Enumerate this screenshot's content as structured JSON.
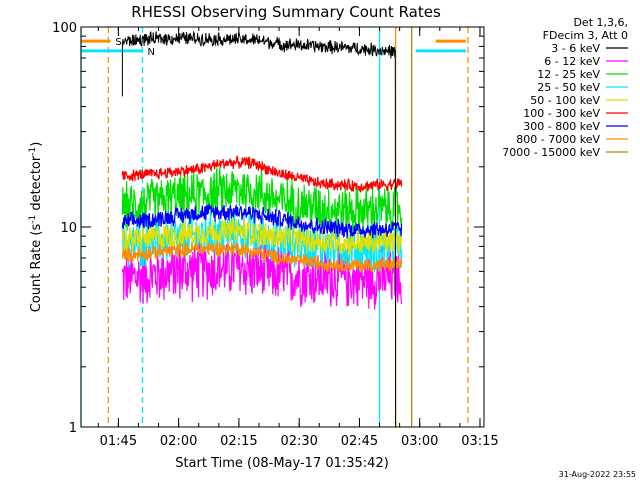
{
  "chart_data": {
    "type": "line",
    "title": "RHESSI Observing Summary Count Rates",
    "xlabel": "Start Time (08-May-17 01:35:42)",
    "ylabel": "Count Rate (s",
    "ylabel_sup": "-1",
    "ylabel_rest": " detector",
    "ylabel_sup2": "-1",
    "ylabel_end": ")",
    "y_scale": "log",
    "ylim": [
      1,
      100
    ],
    "xlim": [
      "01:35:42",
      "03:16:00"
    ],
    "x_ticks": [
      "01:45",
      "02:00",
      "02:15",
      "02:30",
      "02:45",
      "03:00",
      "03:15"
    ],
    "y_ticks": [
      "1",
      "10",
      "100"
    ],
    "legend_header": [
      "Det 1,3,6,",
      "FDecim 3, Att 0"
    ],
    "legend_placement": "right",
    "series": [
      {
        "name": "3 - 6 keV",
        "color": "#000000",
        "base": 85,
        "noise": 0.045,
        "points": [
          [
            "01:47",
            85
          ],
          [
            "01:53",
            87
          ],
          [
            "02:00",
            88
          ],
          [
            "02:10",
            87
          ],
          [
            "02:20",
            86
          ],
          [
            "02:25",
            82
          ],
          [
            "02:35",
            80
          ],
          [
            "02:45",
            78
          ],
          [
            "02:52",
            76
          ],
          [
            "02:54",
            75
          ]
        ]
      },
      {
        "name": "6 - 12 keV",
        "color": "#ff00ff",
        "base": 5.6,
        "noise": 0.2,
        "points": [
          [
            "01:46",
            5.5
          ],
          [
            "02:00",
            6.0
          ],
          [
            "02:10",
            6.2
          ],
          [
            "02:15",
            6.3
          ],
          [
            "02:25",
            5.8
          ],
          [
            "02:35",
            5.6
          ],
          [
            "02:45",
            5.5
          ],
          [
            "02:55",
            5.6
          ]
        ]
      },
      {
        "name": "12 - 25 keV",
        "color": "#00e000",
        "base": 13,
        "noise": 0.16,
        "points": [
          [
            "01:46",
            12.5
          ],
          [
            "01:55",
            13.5
          ],
          [
            "02:05",
            14.5
          ],
          [
            "02:15",
            15.5
          ],
          [
            "02:20",
            15.0
          ],
          [
            "02:25",
            13.5
          ],
          [
            "02:35",
            12.5
          ],
          [
            "02:45",
            12.0
          ],
          [
            "02:55",
            12.5
          ]
        ]
      },
      {
        "name": "25 - 50 keV",
        "color": "#00e6ff",
        "base": 8.2,
        "noise": 0.16,
        "points": [
          [
            "01:46",
            8.0
          ],
          [
            "01:55",
            8.5
          ],
          [
            "02:05",
            9.0
          ],
          [
            "02:15",
            9.3
          ],
          [
            "02:25",
            8.5
          ],
          [
            "02:35",
            8.0
          ],
          [
            "02:45",
            7.8
          ],
          [
            "02:55",
            8.0
          ]
        ]
      },
      {
        "name": "50 - 100 keV",
        "color": "#e0e000",
        "base": 8.8,
        "noise": 0.09,
        "points": [
          [
            "01:46",
            8.6
          ],
          [
            "01:55",
            8.9
          ],
          [
            "02:05",
            9.3
          ],
          [
            "02:15",
            9.6
          ],
          [
            "02:25",
            8.8
          ],
          [
            "02:35",
            8.5
          ],
          [
            "02:45",
            8.3
          ],
          [
            "02:55",
            8.5
          ]
        ]
      },
      {
        "name": "100 - 300 keV",
        "color": "#ff0000",
        "base": 18,
        "noise": 0.04,
        "points": [
          [
            "01:46",
            18
          ],
          [
            "01:55",
            18.5
          ],
          [
            "02:05",
            19.5
          ],
          [
            "02:12",
            21
          ],
          [
            "02:18",
            21
          ],
          [
            "02:25",
            18.5
          ],
          [
            "02:35",
            16.5
          ],
          [
            "02:45",
            16
          ],
          [
            "02:55",
            16.5
          ]
        ]
      },
      {
        "name": "300 - 800 keV",
        "color": "#0000ff",
        "base": 10.5,
        "noise": 0.06,
        "points": [
          [
            "01:46",
            10.5
          ],
          [
            "01:55",
            11
          ],
          [
            "02:05",
            11.8
          ],
          [
            "02:15",
            12
          ],
          [
            "02:25",
            11
          ],
          [
            "02:35",
            10
          ],
          [
            "02:45",
            9.7
          ],
          [
            "02:55",
            9.8
          ]
        ]
      },
      {
        "name": "800 - 7000 keV",
        "color": "#ff8c00",
        "base": 7.2,
        "noise": 0.05,
        "points": [
          [
            "01:46",
            7.2
          ],
          [
            "01:55",
            7.5
          ],
          [
            "02:05",
            7.8
          ],
          [
            "02:15",
            7.8
          ],
          [
            "02:25",
            7.0
          ],
          [
            "02:35",
            6.6
          ],
          [
            "02:45",
            6.4
          ],
          [
            "02:55",
            6.5
          ]
        ]
      },
      {
        "name": "7000 - 15000 keV",
        "color": "#b8860b",
        "base": 0,
        "noise": 0,
        "points": []
      }
    ],
    "vertical_lines": [
      {
        "time": "01:35:42",
        "color": "#00e6ff",
        "style": "solid"
      },
      {
        "time": "01:42:30",
        "color": "#ff8c00",
        "style": "dashed"
      },
      {
        "time": "01:51:00",
        "color": "#00e6ff",
        "style": "dashed"
      },
      {
        "time": "02:50:00",
        "color": "#00e6ff",
        "style": "solid"
      },
      {
        "time": "02:54:00",
        "color": "#ff8c00",
        "style": "solid"
      },
      {
        "time": "02:58:00",
        "color": "#b8860b",
        "style": "solid"
      },
      {
        "time": "03:12:00",
        "color": "#ff8c00",
        "style": "dashed"
      }
    ],
    "flags": [
      {
        "label": "S",
        "color": "#ff8c00",
        "level": 85,
        "segments": [
          [
            "01:35:42",
            "01:43:00"
          ],
          [
            "03:04:00",
            "03:11:30"
          ]
        ]
      },
      {
        "label": "N",
        "color": "#00e6ff",
        "level": 76,
        "segments": [
          [
            "01:35:42",
            "01:51:00"
          ],
          [
            "02:50:00",
            "02:54:00"
          ],
          [
            "02:59:00",
            "03:11:30"
          ]
        ]
      }
    ],
    "data_start": "01:46:00",
    "data_end": "02:55:30",
    "black_end": "02:54:00"
  },
  "stamp": "31-Aug-2022 23:55"
}
